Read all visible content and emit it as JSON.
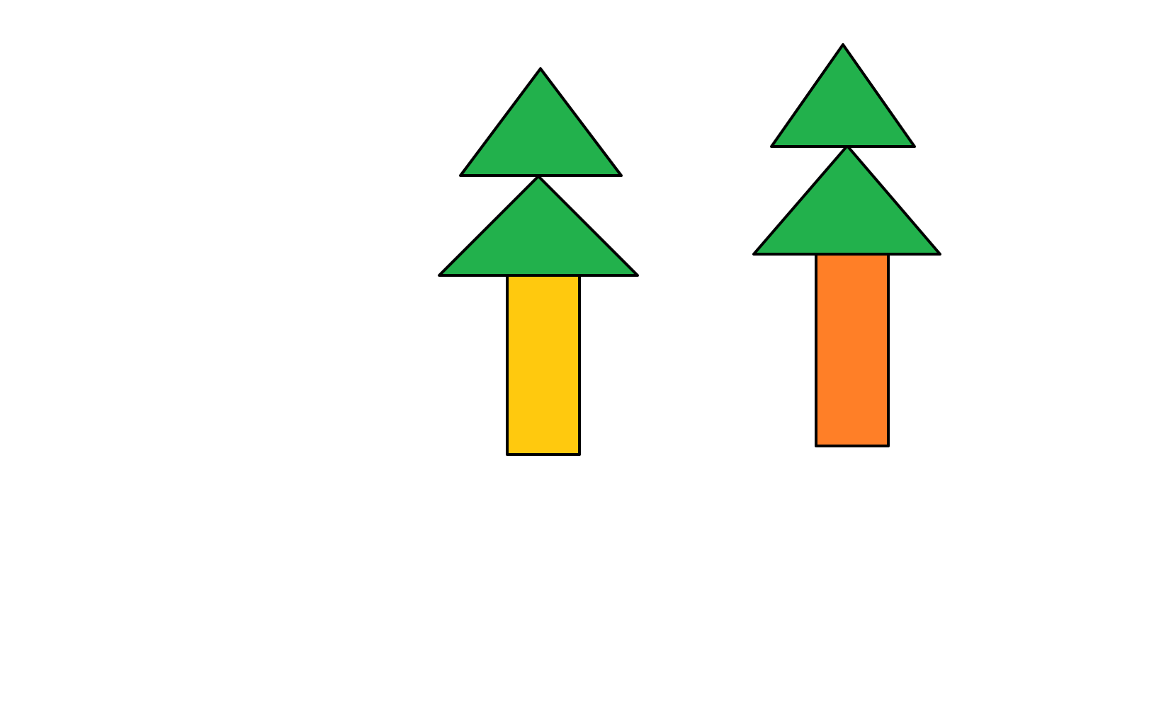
{
  "canvas": {
    "background": "#ffffff"
  },
  "palette": {
    "outline": "#000000",
    "foliage": "#22b14c",
    "trunk_left": "#ffc90e",
    "trunk_right": "#ff7f27"
  },
  "trees": [
    {
      "name": "tree-left",
      "canopy_tiers": 2,
      "canopy_color": "#22b14c",
      "trunk_color": "#ffc90e"
    },
    {
      "name": "tree-right",
      "canopy_tiers": 2,
      "canopy_color": "#22b14c",
      "trunk_color": "#ff7f27"
    }
  ]
}
